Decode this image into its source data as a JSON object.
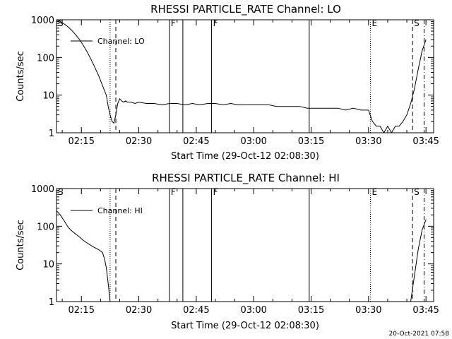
{
  "chart_data": [
    {
      "type": "line",
      "title": "RHESSI PARTICLE_RATE Channel: LO",
      "xlabel": "Start Time (29-Oct-12 02:08:30)",
      "ylabel": "Counts/sec",
      "yscale": "log",
      "ylim": [
        1,
        1000
      ],
      "xlim": [
        "02:08:30",
        "03:47:00"
      ],
      "x_ticks": [
        "02:15",
        "02:30",
        "02:45",
        "03:00",
        "03:15",
        "03:30",
        "03:45"
      ],
      "y_ticks": [
        "1",
        "10",
        "100",
        "1000"
      ],
      "legend": {
        "position": "top-left",
        "entries": [
          "Channel: LO"
        ]
      },
      "series": [
        {
          "name": "Channel: LO",
          "x": [
            "02:08:30",
            "02:09:30",
            "02:10:30",
            "02:11:30",
            "02:12:30",
            "02:13:30",
            "02:14:30",
            "02:15:30",
            "02:16:30",
            "02:17:30",
            "02:18:30",
            "02:19:30",
            "02:20:30",
            "02:21:30",
            "02:22:00",
            "02:22:30",
            "02:23:00",
            "02:23:30",
            "02:24:00",
            "02:24:30",
            "02:25:00",
            "02:25:30",
            "02:26:00",
            "02:26:30",
            "02:27:00",
            "02:28:00",
            "02:29:00",
            "02:30:00",
            "02:32:00",
            "02:34:00",
            "02:36:00",
            "02:38:00",
            "02:40:00",
            "02:42:00",
            "02:44:00",
            "02:46:00",
            "02:48:00",
            "02:50:00",
            "02:52:00",
            "02:54:00",
            "02:56:00",
            "02:58:00",
            "03:00:00",
            "03:02:00",
            "03:04:00",
            "03:06:00",
            "03:08:00",
            "03:10:00",
            "03:12:00",
            "03:14:00",
            "03:16:00",
            "03:18:00",
            "03:20:00",
            "03:22:00",
            "03:24:00",
            "03:26:00",
            "03:28:00",
            "03:30:00",
            "03:31:00",
            "03:32:00",
            "03:33:00",
            "03:34:00",
            "03:35:00",
            "03:36:00",
            "03:37:00",
            "03:38:00",
            "03:39:00",
            "03:40:00",
            "03:41:00",
            "03:42:00",
            "03:43:00",
            "03:44:00",
            "03:45:00"
          ],
          "values": [
            1000,
            900,
            780,
            650,
            520,
            400,
            300,
            210,
            140,
            90,
            55,
            33,
            18,
            10,
            5,
            3,
            2,
            1.8,
            3,
            6,
            8,
            7,
            6.5,
            7,
            6.5,
            6.5,
            6,
            6.5,
            6,
            6,
            5.5,
            6,
            6,
            5.5,
            6,
            5.5,
            6,
            6,
            5.5,
            6,
            5.5,
            5.5,
            5.5,
            5.5,
            5.5,
            5,
            5,
            5,
            5,
            4.5,
            4.5,
            4.5,
            4.5,
            4.5,
            4,
            4.5,
            4,
            4,
            2,
            1.5,
            1.5,
            1,
            1.5,
            1,
            1.5,
            1.5,
            2,
            3,
            6,
            15,
            50,
            150,
            300
          ]
        }
      ],
      "markers": [
        {
          "label": "S",
          "time": "02:08:30",
          "style": "none"
        },
        {
          "time": "02:22:30",
          "style": "dotted"
        },
        {
          "time": "02:24:00",
          "style": "dashed"
        },
        {
          "label": "F",
          "time": "02:38:00",
          "style": "solid"
        },
        {
          "time": "02:41:30",
          "style": "solid"
        },
        {
          "label": "F",
          "time": "02:49:00",
          "style": "solid"
        },
        {
          "time": "03:14:30",
          "style": "solid"
        },
        {
          "label": "E",
          "time": "03:30:30",
          "style": "dotted"
        },
        {
          "label": "S",
          "time": "03:41:30",
          "style": "dashed"
        },
        {
          "time": "03:44:30",
          "style": "dashdot"
        }
      ]
    },
    {
      "type": "line",
      "title": "RHESSI PARTICLE_RATE Channel: HI",
      "xlabel": "Start Time (29-Oct-12 02:08:30)",
      "ylabel": "Counts/sec",
      "yscale": "log",
      "ylim": [
        1,
        1000
      ],
      "xlim": [
        "02:08:30",
        "03:47:00"
      ],
      "x_ticks": [
        "02:15",
        "02:30",
        "02:45",
        "03:00",
        "03:15",
        "03:30",
        "03:45"
      ],
      "y_ticks": [
        "1",
        "10",
        "100",
        "1000"
      ],
      "legend": {
        "position": "top-left",
        "entries": [
          "Channel: HI"
        ]
      },
      "series": [
        {
          "name": "Channel: HI",
          "x": [
            "02:08:30",
            "02:09:30",
            "02:10:30",
            "02:11:30",
            "02:12:30",
            "02:13:30",
            "02:14:30",
            "02:15:30",
            "02:16:30",
            "02:17:30",
            "02:18:30",
            "02:19:30",
            "02:20:30",
            "02:21:00",
            "02:21:30",
            "02:22:00",
            "02:22:30",
            "03:41:00",
            "03:42:00",
            "03:43:00",
            "03:44:00",
            "03:45:00"
          ],
          "values": [
            260,
            200,
            140,
            95,
            75,
            62,
            52,
            42,
            36,
            31,
            27,
            24,
            20,
            14,
            8,
            3,
            1,
            1,
            5,
            25,
            80,
            150
          ]
        }
      ],
      "markers": [
        {
          "label": "S",
          "time": "02:08:30",
          "style": "none"
        },
        {
          "time": "02:22:30",
          "style": "dotted"
        },
        {
          "time": "02:24:00",
          "style": "dashed"
        },
        {
          "label": "F",
          "time": "02:38:00",
          "style": "solid"
        },
        {
          "time": "02:41:30",
          "style": "solid"
        },
        {
          "label": "F",
          "time": "02:49:00",
          "style": "solid"
        },
        {
          "time": "03:14:30",
          "style": "solid"
        },
        {
          "label": "E",
          "time": "03:30:30",
          "style": "dotted"
        },
        {
          "label": "S",
          "time": "03:41:30",
          "style": "dashed"
        },
        {
          "time": "03:44:30",
          "style": "dashdot"
        }
      ]
    }
  ],
  "footer": {
    "stamp": "20-Oct-2021 07:58"
  }
}
